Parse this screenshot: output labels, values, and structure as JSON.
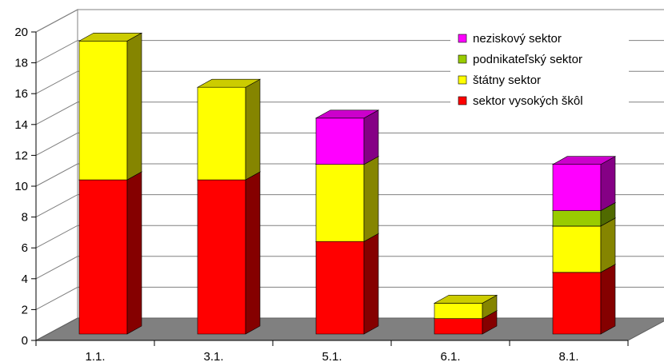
{
  "chart_data": {
    "type": "bar",
    "stacked": true,
    "three_d": true,
    "categories": [
      "1.1.",
      "3.1.",
      "5.1.",
      "6.1.",
      "8.1."
    ],
    "series": [
      {
        "name": "sektor vysokých škôl",
        "values": [
          10,
          10,
          6,
          1,
          4
        ],
        "color": "#FF0000"
      },
      {
        "name": "štátny sektor",
        "values": [
          9,
          6,
          5,
          1,
          3
        ],
        "color": "#FFFF00"
      },
      {
        "name": "podnikateľský sektor",
        "values": [
          0,
          0,
          0,
          0,
          1
        ],
        "color": "#99CC00"
      },
      {
        "name": "neziskový sektor",
        "values": [
          0,
          0,
          3,
          0,
          3
        ],
        "color": "#FF00FF"
      }
    ],
    "y_ticks": [
      "0",
      "2",
      "4",
      "6",
      "8",
      "10",
      "12",
      "14",
      "16",
      "18",
      "20"
    ],
    "ylim": [
      0,
      20
    ],
    "grid": true,
    "legend_position": "top-right",
    "floor_color": "#808080",
    "wall_color": "#FFFFFF"
  }
}
